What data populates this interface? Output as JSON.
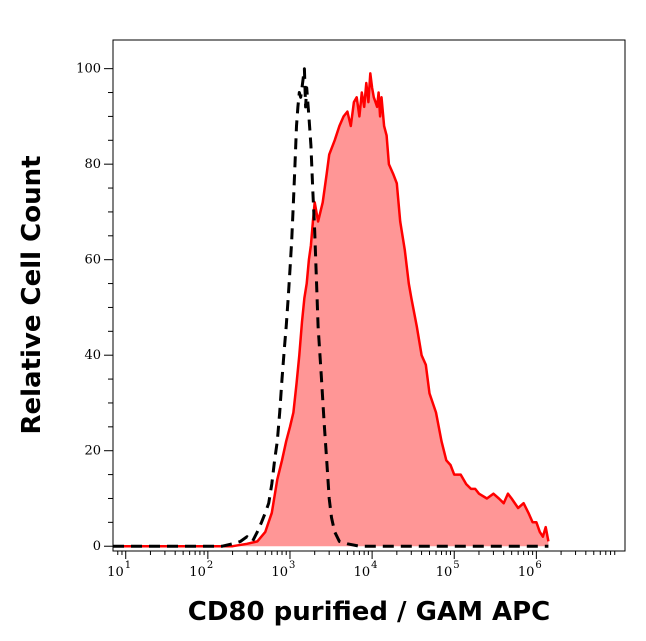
{
  "chart_data": {
    "type": "area",
    "title": "",
    "xlabel": "CD80 purified / GAM APC",
    "ylabel": "Relative Cell Count",
    "x_scale": "log",
    "xlim": [
      7,
      12000000
    ],
    "ylim": [
      -1,
      106
    ],
    "x_ticks": [
      {
        "base": "10",
        "exp": "1",
        "value": 10
      },
      {
        "base": "10",
        "exp": "2",
        "value": 100
      },
      {
        "base": "10",
        "exp": "3",
        "value": 1000
      },
      {
        "base": "10",
        "exp": "4",
        "value": 10000
      },
      {
        "base": "10",
        "exp": "5",
        "value": 100000
      },
      {
        "base": "10",
        "exp": "6",
        "value": 1000000
      }
    ],
    "y_ticks": [
      {
        "label": "0",
        "value": 0
      },
      {
        "label": "20",
        "value": 20
      },
      {
        "label": "40",
        "value": 40
      },
      {
        "label": "60",
        "value": 60
      },
      {
        "label": "80",
        "value": 80
      },
      {
        "label": "100",
        "value": 100
      }
    ],
    "grid": false,
    "series": [
      {
        "style": "filled red area",
        "color": "#ff0000",
        "fill": "#ff9696",
        "x": [
          7,
          100,
          200,
          300,
          400,
          500,
          600,
          700,
          800,
          900,
          1000,
          1100,
          1200,
          1300,
          1400,
          1500,
          1600,
          1700,
          1800,
          1900,
          2000,
          2200,
          2500,
          2800,
          3000,
          3500,
          4000,
          4500,
          5000,
          5500,
          6000,
          6500,
          7000,
          7500,
          8000,
          8500,
          9000,
          9500,
          10000,
          10500,
          11000,
          11500,
          12000,
          12500,
          13000,
          14000,
          15000,
          16000,
          18000,
          20000,
          22000,
          25000,
          28000,
          30000,
          35000,
          40000,
          45000,
          50000,
          60000,
          70000,
          80000,
          90000,
          100000,
          120000,
          140000,
          160000,
          180000,
          200000,
          250000,
          300000,
          350000,
          400000,
          450000,
          500000,
          600000,
          700000,
          800000,
          900000,
          1000000,
          1100000,
          1200000,
          1300000,
          1400000
        ],
        "y": [
          0,
          0,
          0,
          0.5,
          1,
          3,
          7,
          14,
          18,
          22,
          25,
          28,
          34,
          40,
          47,
          52,
          55,
          60,
          63,
          68,
          72,
          68,
          72,
          78,
          82,
          85,
          88,
          90,
          91,
          88,
          93,
          94,
          90,
          95,
          92,
          97,
          93,
          99,
          96,
          94,
          93,
          92,
          95,
          90,
          94,
          88,
          86,
          80,
          78,
          76,
          68,
          62,
          55,
          52,
          46,
          40,
          38,
          32,
          28,
          22,
          18,
          17,
          15,
          15,
          13,
          12,
          12,
          11,
          10,
          11,
          10,
          9,
          11,
          10,
          8,
          9,
          7,
          5,
          5,
          3,
          2,
          4,
          1
        ]
      },
      {
        "style": "black dashed line",
        "color": "#000000",
        "x": [
          7,
          100,
          150,
          200,
          250,
          300,
          350,
          400,
          450,
          500,
          550,
          600,
          650,
          700,
          750,
          800,
          850,
          900,
          950,
          1000,
          1050,
          1100,
          1150,
          1200,
          1250,
          1300,
          1350,
          1400,
          1450,
          1500,
          1550,
          1600,
          1700,
          1800,
          1900,
          2000,
          2100,
          2200,
          2400,
          2600,
          2800,
          3000,
          3200,
          3500,
          4000,
          5000,
          7000,
          10000,
          20000,
          50000,
          100000,
          300000,
          1000000,
          1400000
        ],
        "y": [
          0,
          0,
          0,
          0.5,
          1,
          2,
          1,
          3,
          5,
          7,
          9,
          13,
          18,
          22,
          28,
          35,
          41,
          46,
          52,
          58,
          64,
          72,
          80,
          88,
          92,
          95,
          94,
          96,
          98,
          100,
          92,
          96,
          90,
          84,
          74,
          66,
          56,
          46,
          36,
          26,
          18,
          10,
          6,
          3,
          1,
          0.5,
          0,
          0,
          0,
          0,
          0,
          0,
          0,
          0
        ]
      }
    ]
  }
}
